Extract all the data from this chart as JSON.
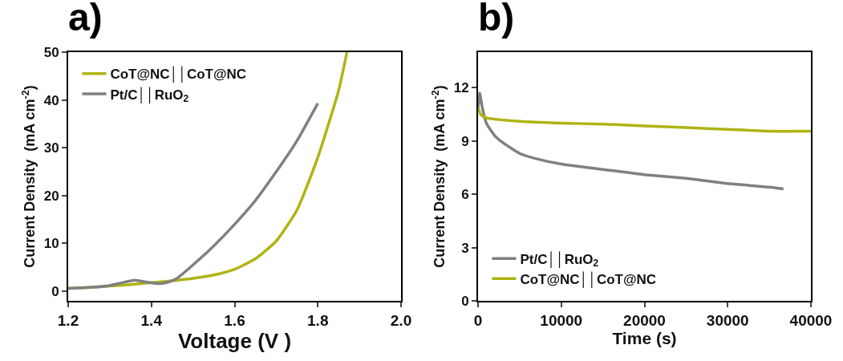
{
  "chart_data": [
    {
      "type": "line",
      "title": "a)",
      "xlabel": "Voltage (V )",
      "ylabel": "Current Density  (mA cm$^{-2}$)",
      "xlim": [
        1.2,
        2.0
      ],
      "xticks": [
        {
          "value": 1.2,
          "label": "1.2"
        },
        {
          "value": 1.4,
          "label": "1.4"
        },
        {
          "value": 1.6,
          "label": "1.6"
        },
        {
          "value": 1.8,
          "label": "1.8"
        },
        {
          "value": 2.0,
          "label": "2.0"
        }
      ],
      "ylim": [
        -2,
        50
      ],
      "yticks": [
        0,
        10,
        20,
        30,
        40,
        50
      ],
      "grid": false,
      "legend": "top left",
      "marker": "none",
      "line_style": "solid",
      "series": [
        {
          "name": "CoT@NC││CoT@NC",
          "color": "#afb414",
          "x": [
            1.2,
            1.25,
            1.3,
            1.35,
            1.4,
            1.45,
            1.5,
            1.55,
            1.6,
            1.65,
            1.7,
            1.75,
            1.8,
            1.85,
            1.87
          ],
          "values": [
            0.6,
            0.8,
            1.1,
            1.4,
            1.8,
            2.2,
            2.7,
            3.4,
            4.6,
            6.8,
            10.5,
            17,
            28,
            42,
            50
          ]
        },
        {
          "name": "Pt/C││RuO$_{2}$",
          "color": "#808080",
          "x": [
            1.2,
            1.25,
            1.3,
            1.33,
            1.36,
            1.39,
            1.42,
            1.44,
            1.46,
            1.5,
            1.55,
            1.6,
            1.65,
            1.7,
            1.75,
            1.8
          ],
          "values": [
            0.6,
            0.8,
            1.2,
            1.8,
            2.3,
            1.9,
            1.6,
            1.9,
            2.6,
            5.5,
            9.5,
            14,
            19,
            25,
            31.5,
            39.3
          ]
        }
      ]
    },
    {
      "type": "line",
      "title": "b)",
      "xlabel": "Time (s)",
      "ylabel": "Current Density  (mA cm$^{-2}$)",
      "xlim": [
        0,
        40000
      ],
      "xticks": [
        0,
        10000,
        20000,
        30000,
        40000
      ],
      "ylim": [
        0,
        14
      ],
      "yticks": [
        0,
        3,
        6,
        9,
        12
      ],
      "grid": false,
      "legend": "bottom left",
      "marker": "none",
      "line_style": "solid",
      "series": [
        {
          "name": "Pt/C││RuO$_{2}$",
          "color": "#808080",
          "x": [
            0,
            200,
            500,
            1000,
            2000,
            3000,
            5000,
            7000,
            10000,
            15000,
            20000,
            25000,
            30000,
            35000,
            36700
          ],
          "values": [
            10.8,
            11.7,
            10.9,
            10.0,
            9.3,
            8.9,
            8.3,
            8.0,
            7.7,
            7.4,
            7.1,
            6.9,
            6.6,
            6.4,
            6.3
          ]
        },
        {
          "name": "CoT@NC││CoT@NC",
          "color": "#afb414",
          "x": [
            0,
            300,
            1000,
            5000,
            10000,
            15000,
            20000,
            25000,
            30000,
            35000,
            40000
          ],
          "values": [
            10.9,
            10.5,
            10.3,
            10.1,
            10.0,
            9.95,
            9.85,
            9.75,
            9.65,
            9.55,
            9.55
          ]
        }
      ]
    }
  ]
}
